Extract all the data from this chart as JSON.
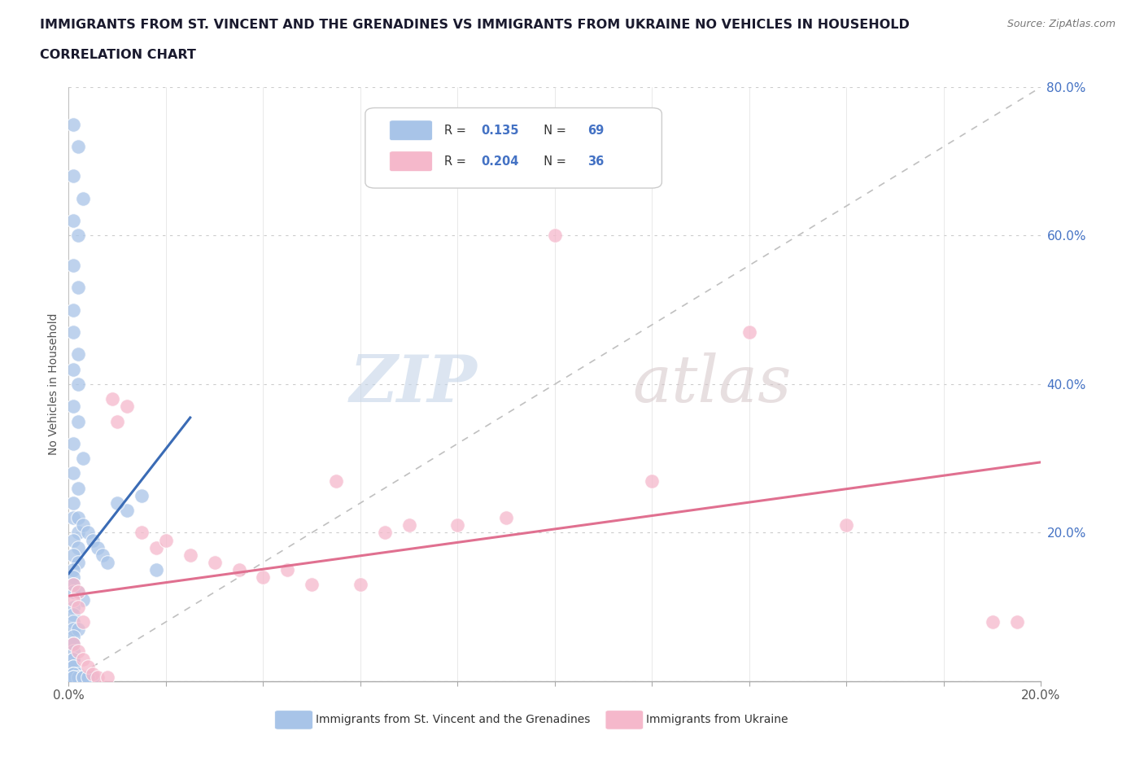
{
  "title_line1": "IMMIGRANTS FROM ST. VINCENT AND THE GRENADINES VS IMMIGRANTS FROM UKRAINE NO VEHICLES IN HOUSEHOLD",
  "title_line2": "CORRELATION CHART",
  "source_text": "Source: ZipAtlas.com",
  "watermark_zip": "ZIP",
  "watermark_atlas": "atlas",
  "ylabel": "No Vehicles in Household",
  "xlim": [
    0.0,
    0.2
  ],
  "ylim": [
    0.0,
    0.8
  ],
  "xticks": [
    0.0,
    0.02,
    0.04,
    0.06,
    0.08,
    0.1,
    0.12,
    0.14,
    0.16,
    0.18,
    0.2
  ],
  "yticks": [
    0.0,
    0.2,
    0.4,
    0.6,
    0.8
  ],
  "blue_R": 0.135,
  "blue_N": 69,
  "pink_R": 0.204,
  "pink_N": 36,
  "blue_color": "#a8c4e8",
  "pink_color": "#f5b8cb",
  "blue_line_color": "#3a6bb5",
  "pink_line_color": "#e07090",
  "legend_blue_text_color": "#4472c4",
  "right_axis_color": "#4472c4",
  "blue_scatter_x": [
    0.001,
    0.002,
    0.001,
    0.003,
    0.001,
    0.002,
    0.001,
    0.002,
    0.001,
    0.001,
    0.002,
    0.001,
    0.002,
    0.001,
    0.002,
    0.001,
    0.003,
    0.001,
    0.002,
    0.001,
    0.001,
    0.002,
    0.001,
    0.002,
    0.001,
    0.002,
    0.001,
    0.001,
    0.001,
    0.001,
    0.002,
    0.003,
    0.001,
    0.001,
    0.001,
    0.001,
    0.002,
    0.001,
    0.001,
    0.001,
    0.001,
    0.001,
    0.001,
    0.001,
    0.001,
    0.001,
    0.001,
    0.002,
    0.001,
    0.001,
    0.003,
    0.002,
    0.001,
    0.003,
    0.004,
    0.005,
    0.003,
    0.004,
    0.002,
    0.003,
    0.004,
    0.005,
    0.006,
    0.007,
    0.008,
    0.015,
    0.012,
    0.01,
    0.018
  ],
  "blue_scatter_y": [
    0.75,
    0.72,
    0.68,
    0.65,
    0.62,
    0.6,
    0.56,
    0.53,
    0.5,
    0.47,
    0.44,
    0.42,
    0.4,
    0.37,
    0.35,
    0.32,
    0.3,
    0.28,
    0.26,
    0.24,
    0.22,
    0.2,
    0.19,
    0.18,
    0.17,
    0.16,
    0.15,
    0.14,
    0.13,
    0.12,
    0.12,
    0.11,
    0.1,
    0.09,
    0.08,
    0.07,
    0.07,
    0.06,
    0.05,
    0.05,
    0.04,
    0.03,
    0.03,
    0.02,
    0.02,
    0.01,
    0.01,
    0.01,
    0.01,
    0.005,
    0.005,
    0.005,
    0.005,
    0.005,
    0.005,
    0.005,
    0.005,
    0.005,
    0.22,
    0.21,
    0.2,
    0.19,
    0.18,
    0.17,
    0.16,
    0.25,
    0.23,
    0.24,
    0.15
  ],
  "pink_scatter_x": [
    0.001,
    0.002,
    0.001,
    0.002,
    0.003,
    0.001,
    0.002,
    0.003,
    0.004,
    0.005,
    0.006,
    0.008,
    0.009,
    0.01,
    0.012,
    0.015,
    0.018,
    0.02,
    0.025,
    0.03,
    0.035,
    0.04,
    0.045,
    0.05,
    0.055,
    0.06,
    0.065,
    0.07,
    0.08,
    0.09,
    0.1,
    0.12,
    0.14,
    0.16,
    0.19,
    0.195
  ],
  "pink_scatter_y": [
    0.13,
    0.12,
    0.11,
    0.1,
    0.08,
    0.05,
    0.04,
    0.03,
    0.02,
    0.01,
    0.005,
    0.005,
    0.38,
    0.35,
    0.37,
    0.2,
    0.18,
    0.19,
    0.17,
    0.16,
    0.15,
    0.14,
    0.15,
    0.13,
    0.27,
    0.13,
    0.2,
    0.21,
    0.21,
    0.22,
    0.6,
    0.27,
    0.47,
    0.21,
    0.08,
    0.08
  ],
  "blue_regline_x": [
    0.0,
    0.025
  ],
  "blue_regline_y": [
    0.145,
    0.355
  ],
  "pink_regline_x": [
    0.0,
    0.2
  ],
  "pink_regline_y": [
    0.115,
    0.295
  ],
  "diag_line_x": [
    0.0,
    0.2
  ],
  "diag_line_y": [
    0.0,
    0.8
  ]
}
